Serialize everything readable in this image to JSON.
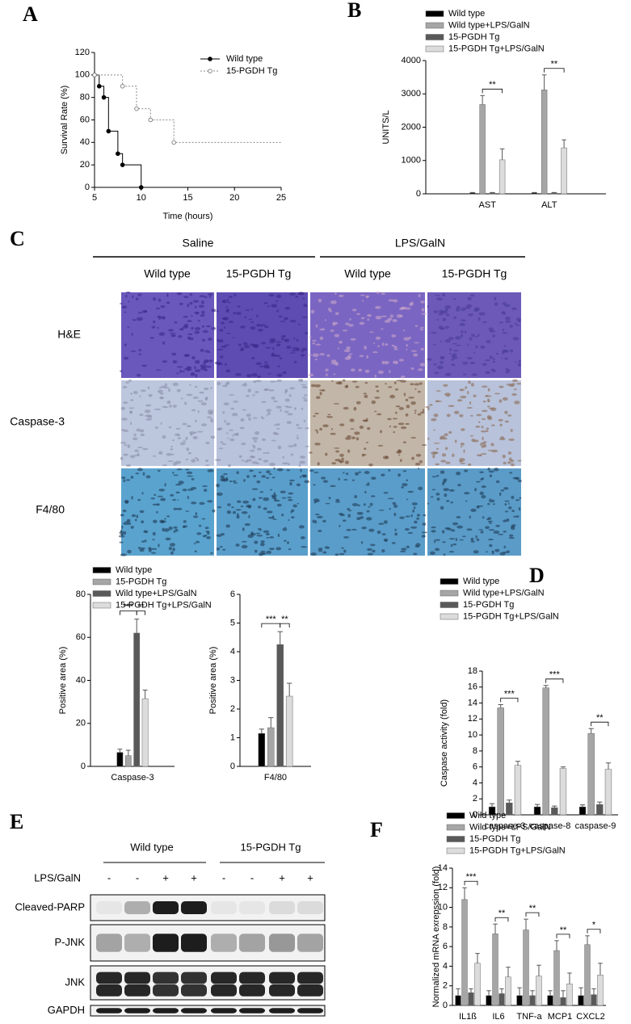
{
  "panel_labels": [
    "A",
    "B",
    "C",
    "D",
    "E",
    "F"
  ],
  "histology": {
    "groups": [
      "Saline",
      "LPS/GalN"
    ],
    "columns": [
      "Wild type",
      "15-PGDH Tg",
      "Wild type",
      "15-PGDH Tg"
    ],
    "rows": [
      "H&E",
      "Caspase-3",
      "F4/80"
    ]
  },
  "western_blot": {
    "groups": [
      "Wild type",
      "15-PGDH Tg"
    ],
    "treatment": "LPS/GalN",
    "signs": [
      "-",
      "-",
      "+",
      "+",
      "-",
      "-",
      "+",
      "+"
    ],
    "rows": [
      "Cleaved-PARP",
      "P-JNK",
      "JNK",
      "GAPDH"
    ]
  },
  "chart_data": [
    {
      "type": "line",
      "xlabel": "Time (hours)",
      "ylabel": "Survival Rate (%)",
      "xlim": [
        5,
        25
      ],
      "xticks": [
        5,
        10,
        15,
        20,
        25
      ],
      "ylim": [
        0,
        120
      ],
      "yticks": [
        0,
        20,
        40,
        60,
        80,
        100,
        120
      ],
      "series": [
        {
          "name": "Wild type",
          "color": "#000000",
          "style": "solid",
          "marker": "filled",
          "x": [
            5,
            5.5,
            6,
            6.5,
            7.5,
            8,
            10
          ],
          "values": [
            100,
            90,
            80,
            50,
            30,
            20,
            0
          ]
        },
        {
          "name": "15-PGDH Tg",
          "color": "#888888",
          "style": "dotted",
          "marker": "hollow",
          "x": [
            5,
            8,
            9.5,
            11,
            13.5
          ],
          "values": [
            100,
            90,
            70,
            60,
            40
          ]
        }
      ]
    },
    {
      "type": "bar",
      "ylabel": "UNITS/L",
      "categories": [
        "AST",
        "ALT"
      ],
      "ylim": [
        0,
        4000
      ],
      "yticks": [
        0,
        1000,
        2000,
        3000,
        4000
      ],
      "series": [
        {
          "name": "Wild type",
          "color": "#000000",
          "values": [
            30,
            30
          ],
          "errors": [
            10,
            10
          ]
        },
        {
          "name": "Wild type+LPS/GalN",
          "color": "#a6a6a6",
          "values": [
            2680,
            3120
          ],
          "errors": [
            270,
            450
          ]
        },
        {
          "name": "15-PGDH Tg",
          "color": "#595959",
          "values": [
            30,
            30
          ],
          "errors": [
            10,
            10
          ]
        },
        {
          "name": "15-PGDH Tg+LPS/GalN",
          "color": "#dcdcdc",
          "values": [
            1020,
            1380
          ],
          "errors": [
            330,
            240
          ]
        }
      ],
      "annotations": [
        "**",
        "**"
      ]
    },
    {
      "type": "bar",
      "ylabel": "Positive area (%)",
      "categories": [
        "Caspase-3"
      ],
      "ylim": [
        0,
        80
      ],
      "yticks": [
        0,
        20,
        40,
        60,
        80
      ],
      "series": [
        {
          "name": "Wild type",
          "color": "#000000",
          "values": [
            6.5
          ],
          "errors": [
            1.5
          ]
        },
        {
          "name": "15-PGDH Tg",
          "color": "#a6a6a6",
          "values": [
            5
          ],
          "errors": [
            2.5
          ]
        },
        {
          "name": "Wild type+LPS/GalN",
          "color": "#595959",
          "values": [
            62
          ],
          "errors": [
            6.5
          ]
        },
        {
          "name": "15-PGDH Tg+LPS/GalN",
          "color": "#dcdcdc",
          "values": [
            31.5
          ],
          "errors": [
            4
          ]
        }
      ],
      "annotations": [
        "***",
        "**"
      ]
    },
    {
      "type": "bar",
      "ylabel": "Positive area (%)",
      "categories": [
        "F4/80"
      ],
      "ylim": [
        0,
        6
      ],
      "yticks": [
        0,
        1,
        2,
        3,
        4,
        5,
        6
      ],
      "series": [
        {
          "color": "#000000",
          "values": [
            1.15
          ],
          "errors": [
            0.15
          ]
        },
        {
          "color": "#a6a6a6",
          "values": [
            1.35
          ],
          "errors": [
            0.35
          ]
        },
        {
          "color": "#595959",
          "values": [
            4.25
          ],
          "errors": [
            0.45
          ]
        },
        {
          "color": "#dcdcdc",
          "values": [
            2.45
          ],
          "errors": [
            0.45
          ]
        }
      ],
      "annotations": [
        "***",
        "**"
      ]
    },
    {
      "type": "bar",
      "ylabel": "Caspase activity (fold)",
      "categories": [
        "caspase-3",
        "caspase-8",
        "caspase-9"
      ],
      "ylim": [
        0,
        18
      ],
      "yticks": [
        0,
        2,
        4,
        6,
        8,
        10,
        12,
        14,
        16,
        18
      ],
      "series": [
        {
          "name": "Wild type",
          "color": "#000000",
          "values": [
            1,
            1,
            1
          ],
          "errors": [
            0.4,
            0.3,
            0.25
          ]
        },
        {
          "name": "Wild type+LPS/GalN",
          "color": "#a6a6a6",
          "values": [
            13.4,
            15.9,
            10.2
          ],
          "errors": [
            0.4,
            0.3,
            0.6
          ]
        },
        {
          "name": "15-PGDH Tg",
          "color": "#595959",
          "values": [
            1.5,
            0.9,
            1.3
          ],
          "errors": [
            0.35,
            0.2,
            0.3
          ]
        },
        {
          "name": "15-PGDH Tg+LPS/GalN",
          "color": "#dcdcdc",
          "values": [
            6.2,
            5.8,
            5.7
          ],
          "errors": [
            0.5,
            0.2,
            0.8
          ]
        }
      ],
      "annotations": [
        "***",
        "***",
        "**"
      ]
    },
    {
      "type": "bar",
      "ylabel": "Normalized mRNA exrepssion (fold)",
      "categories": [
        "IL1ß",
        "IL6",
        "TNF-a",
        "MCP1",
        "CXCL2"
      ],
      "ylim": [
        0,
        14
      ],
      "yticks": [
        0,
        2,
        4,
        6,
        8,
        10,
        12,
        14
      ],
      "series": [
        {
          "name": "Wild type",
          "color": "#000000",
          "values": [
            1,
            1,
            1,
            1,
            1
          ],
          "errors": [
            0.7,
            0.5,
            0.8,
            0.5,
            0.8
          ]
        },
        {
          "name": "Wild type+LPS/GalN",
          "color": "#a6a6a6",
          "values": [
            10.8,
            7.3,
            7.7,
            5.6,
            6.2
          ],
          "errors": [
            1.2,
            1,
            1.1,
            1,
            0.9
          ]
        },
        {
          "name": "15-PGDH Tg",
          "color": "#595959",
          "values": [
            1.3,
            1.2,
            1,
            0.8,
            1.1
          ],
          "errors": [
            0.4,
            0.5,
            0.5,
            0.7,
            0.6
          ]
        },
        {
          "name": "15-PGDH Tg+LPS/GalN",
          "color": "#dcdcdc",
          "values": [
            4.3,
            2.9,
            3,
            2.2,
            3.1
          ],
          "errors": [
            1,
            1,
            1.1,
            1.1,
            1.2
          ]
        }
      ],
      "annotations": [
        "***",
        "**",
        "**",
        "**",
        "*"
      ]
    }
  ]
}
